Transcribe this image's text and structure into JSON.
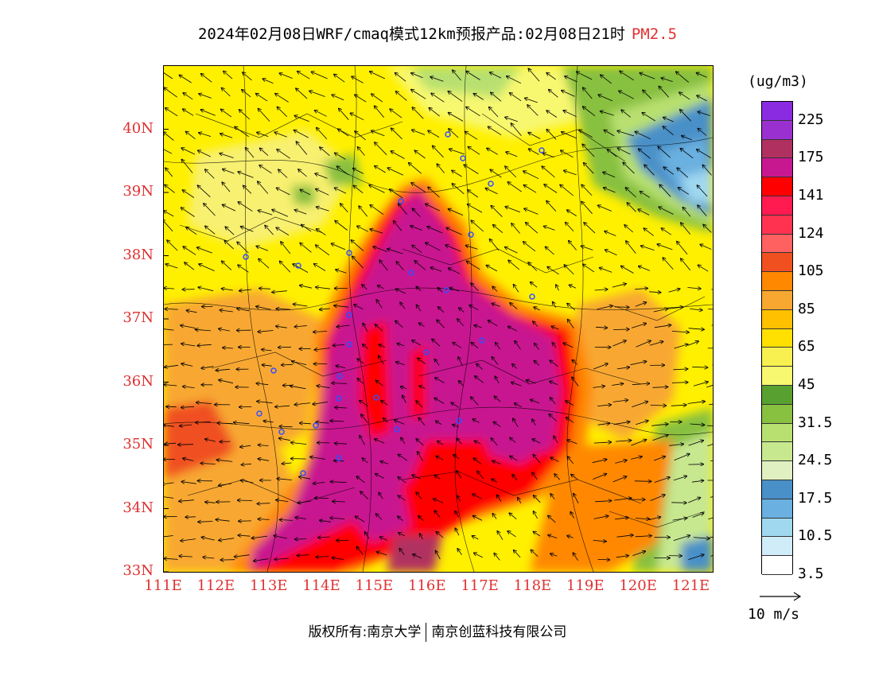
{
  "title": {
    "main": "2024年02月08日WRF/cmaq模式12km预报产品:02月08日21时",
    "pollutant": "PM2.5",
    "pollutant_color": "#e03030"
  },
  "map": {
    "lon_range": [
      111,
      121.4
    ],
    "lat_range": [
      33,
      41
    ],
    "lat_ticks": [
      {
        "value": 40,
        "label": "40N"
      },
      {
        "value": 39,
        "label": "39N"
      },
      {
        "value": 38,
        "label": "38N"
      },
      {
        "value": 37,
        "label": "37N"
      },
      {
        "value": 36,
        "label": "36N"
      },
      {
        "value": 35,
        "label": "35N"
      },
      {
        "value": 34,
        "label": "34N"
      },
      {
        "value": 33,
        "label": "33N"
      }
    ],
    "lon_ticks": [
      {
        "value": 111,
        "label": "111E"
      },
      {
        "value": 112,
        "label": "112E"
      },
      {
        "value": 113,
        "label": "113E"
      },
      {
        "value": 114,
        "label": "114E"
      },
      {
        "value": 115,
        "label": "115E"
      },
      {
        "value": 116,
        "label": "116E"
      },
      {
        "value": 117,
        "label": "117E"
      },
      {
        "value": 118,
        "label": "118E"
      },
      {
        "value": 119,
        "label": "119E"
      },
      {
        "value": 120,
        "label": "120E"
      },
      {
        "value": 121,
        "label": "121E"
      }
    ],
    "tick_color": "#e03030"
  },
  "legend": {
    "unit": "(ug/m3)",
    "colors": [
      "#8a2be2",
      "#9b30d0",
      "#b03060",
      "#c81890",
      "#ff0000",
      "#ff1a50",
      "#ff3350",
      "#ff6060",
      "#f05020",
      "#ff8800",
      "#f8a830",
      "#ffc000",
      "#ffe000",
      "#f8f050",
      "#f8f870",
      "#58a030",
      "#88c040",
      "#b8e070",
      "#c8e890",
      "#e0f0c0",
      "#4a90c8",
      "#6ab0e0",
      "#a0d8f0",
      "#d0ecf8",
      "#ffffff"
    ],
    "labels": [
      "225",
      "175",
      "141",
      "124",
      "105",
      "85",
      "65",
      "45",
      "31.5",
      "24.5",
      "17.5",
      "10.5",
      "3.5"
    ]
  },
  "wind_reference": {
    "label": "10 m/s"
  },
  "footer": {
    "copyright": "版权所有:南京大学",
    "company": "南京创蓝科技有限公司"
  }
}
